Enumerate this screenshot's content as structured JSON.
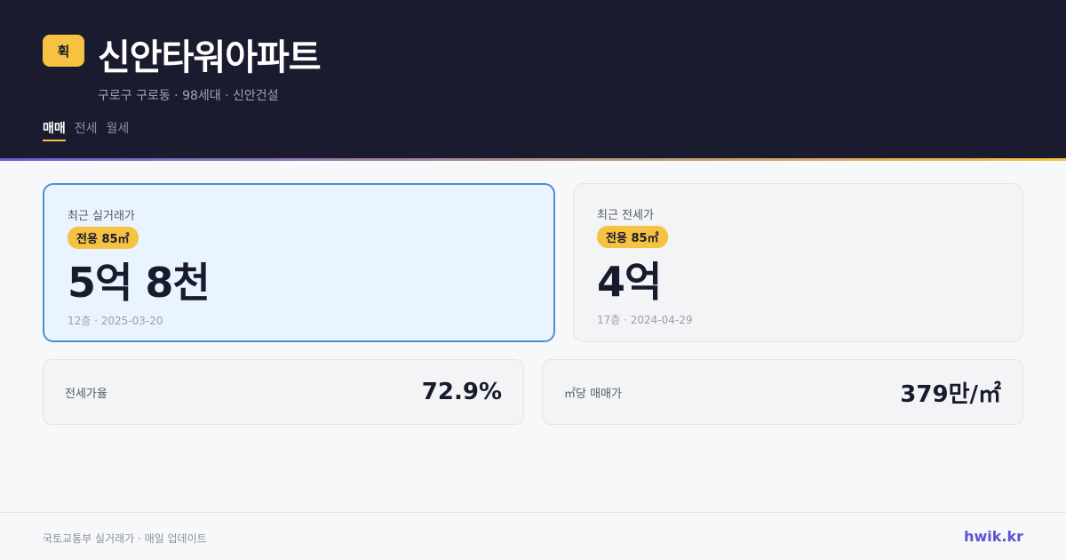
{
  "header": {
    "logo": "휙",
    "title": "신안타워아파트",
    "subtitle": "구로구 구로동 · 98세대 · 신안건설",
    "tabs": [
      "매매",
      "전세",
      "월세"
    ]
  },
  "cards": [
    {
      "label": "최근 실거래가",
      "badge": "전용 85㎡",
      "value": "5억 8천",
      "meta": "12층 · 2025-03-20"
    },
    {
      "label": "최근 전세가",
      "badge": "전용 85㎡",
      "value": "4억",
      "meta": "17층 · 2024-04-29"
    }
  ],
  "stats": [
    {
      "label": "전세가율",
      "value": "72.9%"
    },
    {
      "label": "㎡당 매매가",
      "value": "379만/㎡"
    }
  ],
  "footer": {
    "source": "국토교통부 실거래가 · 매일 업데이트",
    "site": "hwik.kr"
  }
}
